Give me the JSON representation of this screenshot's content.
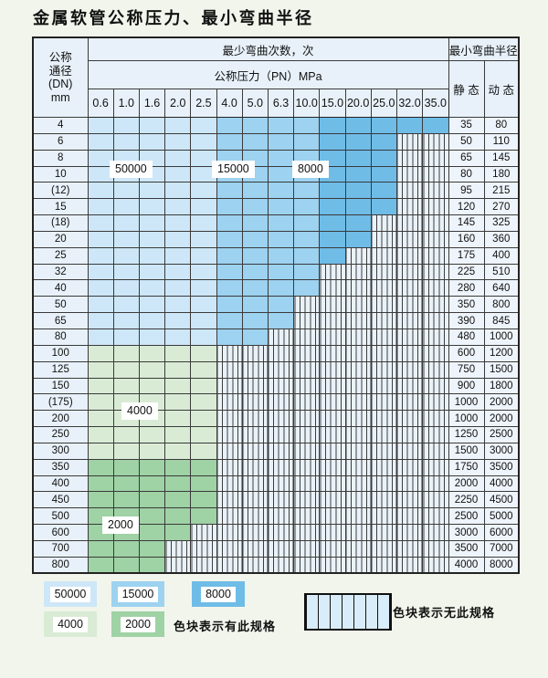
{
  "title": "金属软管公称压力、最小弯曲半径",
  "table": {
    "header": {
      "dn_lines": [
        "公称",
        "通径",
        "(DN)",
        "mm"
      ],
      "bend_cycles": "最少弯曲次数，次",
      "pressure": "公称压力（PN）MPa",
      "min_bend_radius": "最小弯曲半径",
      "static_label": "静 态",
      "dynamic_label": "动 态",
      "pressures": [
        "0.6",
        "1.0",
        "1.6",
        "2.0",
        "2.5",
        "4.0",
        "5.0",
        "6.3",
        "10.0",
        "15.0",
        "20.0",
        "25.0",
        "32.0",
        "35.0"
      ]
    },
    "rows": [
      {
        "dn": "4",
        "last": 13,
        "scheme": "blue",
        "static": "35",
        "dynamic": "80"
      },
      {
        "dn": "6",
        "last": 11,
        "scheme": "blue",
        "static": "50",
        "dynamic": "110"
      },
      {
        "dn": "8",
        "last": 11,
        "scheme": "blue",
        "static": "65",
        "dynamic": "145"
      },
      {
        "dn": "10",
        "last": 11,
        "scheme": "blue",
        "static": "80",
        "dynamic": "180"
      },
      {
        "dn": "(12)",
        "last": 11,
        "scheme": "blue",
        "static": "95",
        "dynamic": "215"
      },
      {
        "dn": "15",
        "last": 11,
        "scheme": "blue",
        "static": "120",
        "dynamic": "270"
      },
      {
        "dn": "(18)",
        "last": 10,
        "scheme": "blue",
        "static": "145",
        "dynamic": "325"
      },
      {
        "dn": "20",
        "last": 10,
        "scheme": "blue",
        "static": "160",
        "dynamic": "360"
      },
      {
        "dn": "25",
        "last": 9,
        "scheme": "blue",
        "static": "175",
        "dynamic": "400"
      },
      {
        "dn": "32",
        "last": 8,
        "scheme": "blue",
        "static": "225",
        "dynamic": "510"
      },
      {
        "dn": "40",
        "last": 8,
        "scheme": "blue",
        "static": "280",
        "dynamic": "640"
      },
      {
        "dn": "50",
        "last": 7,
        "scheme": "blue",
        "static": "350",
        "dynamic": "800"
      },
      {
        "dn": "65",
        "last": 7,
        "scheme": "blue",
        "static": "390",
        "dynamic": "845"
      },
      {
        "dn": "80",
        "last": 6,
        "scheme": "blue",
        "static": "480",
        "dynamic": "1000"
      },
      {
        "dn": "100",
        "last": 4,
        "scheme": "green-light",
        "static": "600",
        "dynamic": "1200"
      },
      {
        "dn": "125",
        "last": 4,
        "scheme": "green-light",
        "static": "750",
        "dynamic": "1500"
      },
      {
        "dn": "150",
        "last": 4,
        "scheme": "green-light",
        "static": "900",
        "dynamic": "1800"
      },
      {
        "dn": "(175)",
        "last": 4,
        "scheme": "green-light",
        "static": "1000",
        "dynamic": "2000"
      },
      {
        "dn": "200",
        "last": 4,
        "scheme": "green-light",
        "static": "1000",
        "dynamic": "2000"
      },
      {
        "dn": "250",
        "last": 4,
        "scheme": "green-light",
        "static": "1250",
        "dynamic": "2500"
      },
      {
        "dn": "300",
        "last": 4,
        "scheme": "green-light",
        "static": "1500",
        "dynamic": "3000"
      },
      {
        "dn": "350",
        "last": 4,
        "scheme": "green-dark",
        "static": "1750",
        "dynamic": "3500"
      },
      {
        "dn": "400",
        "last": 4,
        "scheme": "green-dark",
        "static": "2000",
        "dynamic": "4000"
      },
      {
        "dn": "450",
        "last": 4,
        "scheme": "green-dark",
        "static": "2250",
        "dynamic": "4500"
      },
      {
        "dn": "500",
        "last": 4,
        "scheme": "green-dark",
        "static": "2500",
        "dynamic": "5000"
      },
      {
        "dn": "600",
        "last": 3,
        "scheme": "green-dark",
        "static": "3000",
        "dynamic": "6000"
      },
      {
        "dn": "700",
        "last": 2,
        "scheme": "green-dark",
        "static": "3500",
        "dynamic": "7000"
      },
      {
        "dn": "800",
        "last": 2,
        "scheme": "green-dark",
        "static": "4000",
        "dynamic": "8000"
      }
    ]
  },
  "overlay_labels": [
    {
      "text": "50000"
    },
    {
      "text": "15000"
    },
    {
      "text": "8000"
    },
    {
      "text": "4000"
    },
    {
      "text": "2000"
    }
  ],
  "legend": {
    "swatches": [
      {
        "label": "50000",
        "color": "#cde7f8"
      },
      {
        "label": "15000",
        "color": "#9dd2f0"
      },
      {
        "label": "8000",
        "color": "#6fbce7"
      },
      {
        "label": "4000",
        "color": "#d9ebd5"
      },
      {
        "label": "2000",
        "color": "#9fd2a5"
      }
    ],
    "available_text": "色块表示有此规格",
    "unavailable_text": "色块表示无此规格"
  },
  "colors": {
    "blue_50000": "#cde7f8",
    "blue_15000": "#9dd2f0",
    "blue_8000": "#6fbce7",
    "green_4000": "#d9ebd5",
    "green_2000": "#9fd2a5",
    "header_bg": "#e8f1f9",
    "cell_bg": "#eef4fb",
    "hatch_bg": "#eaf2f9"
  }
}
